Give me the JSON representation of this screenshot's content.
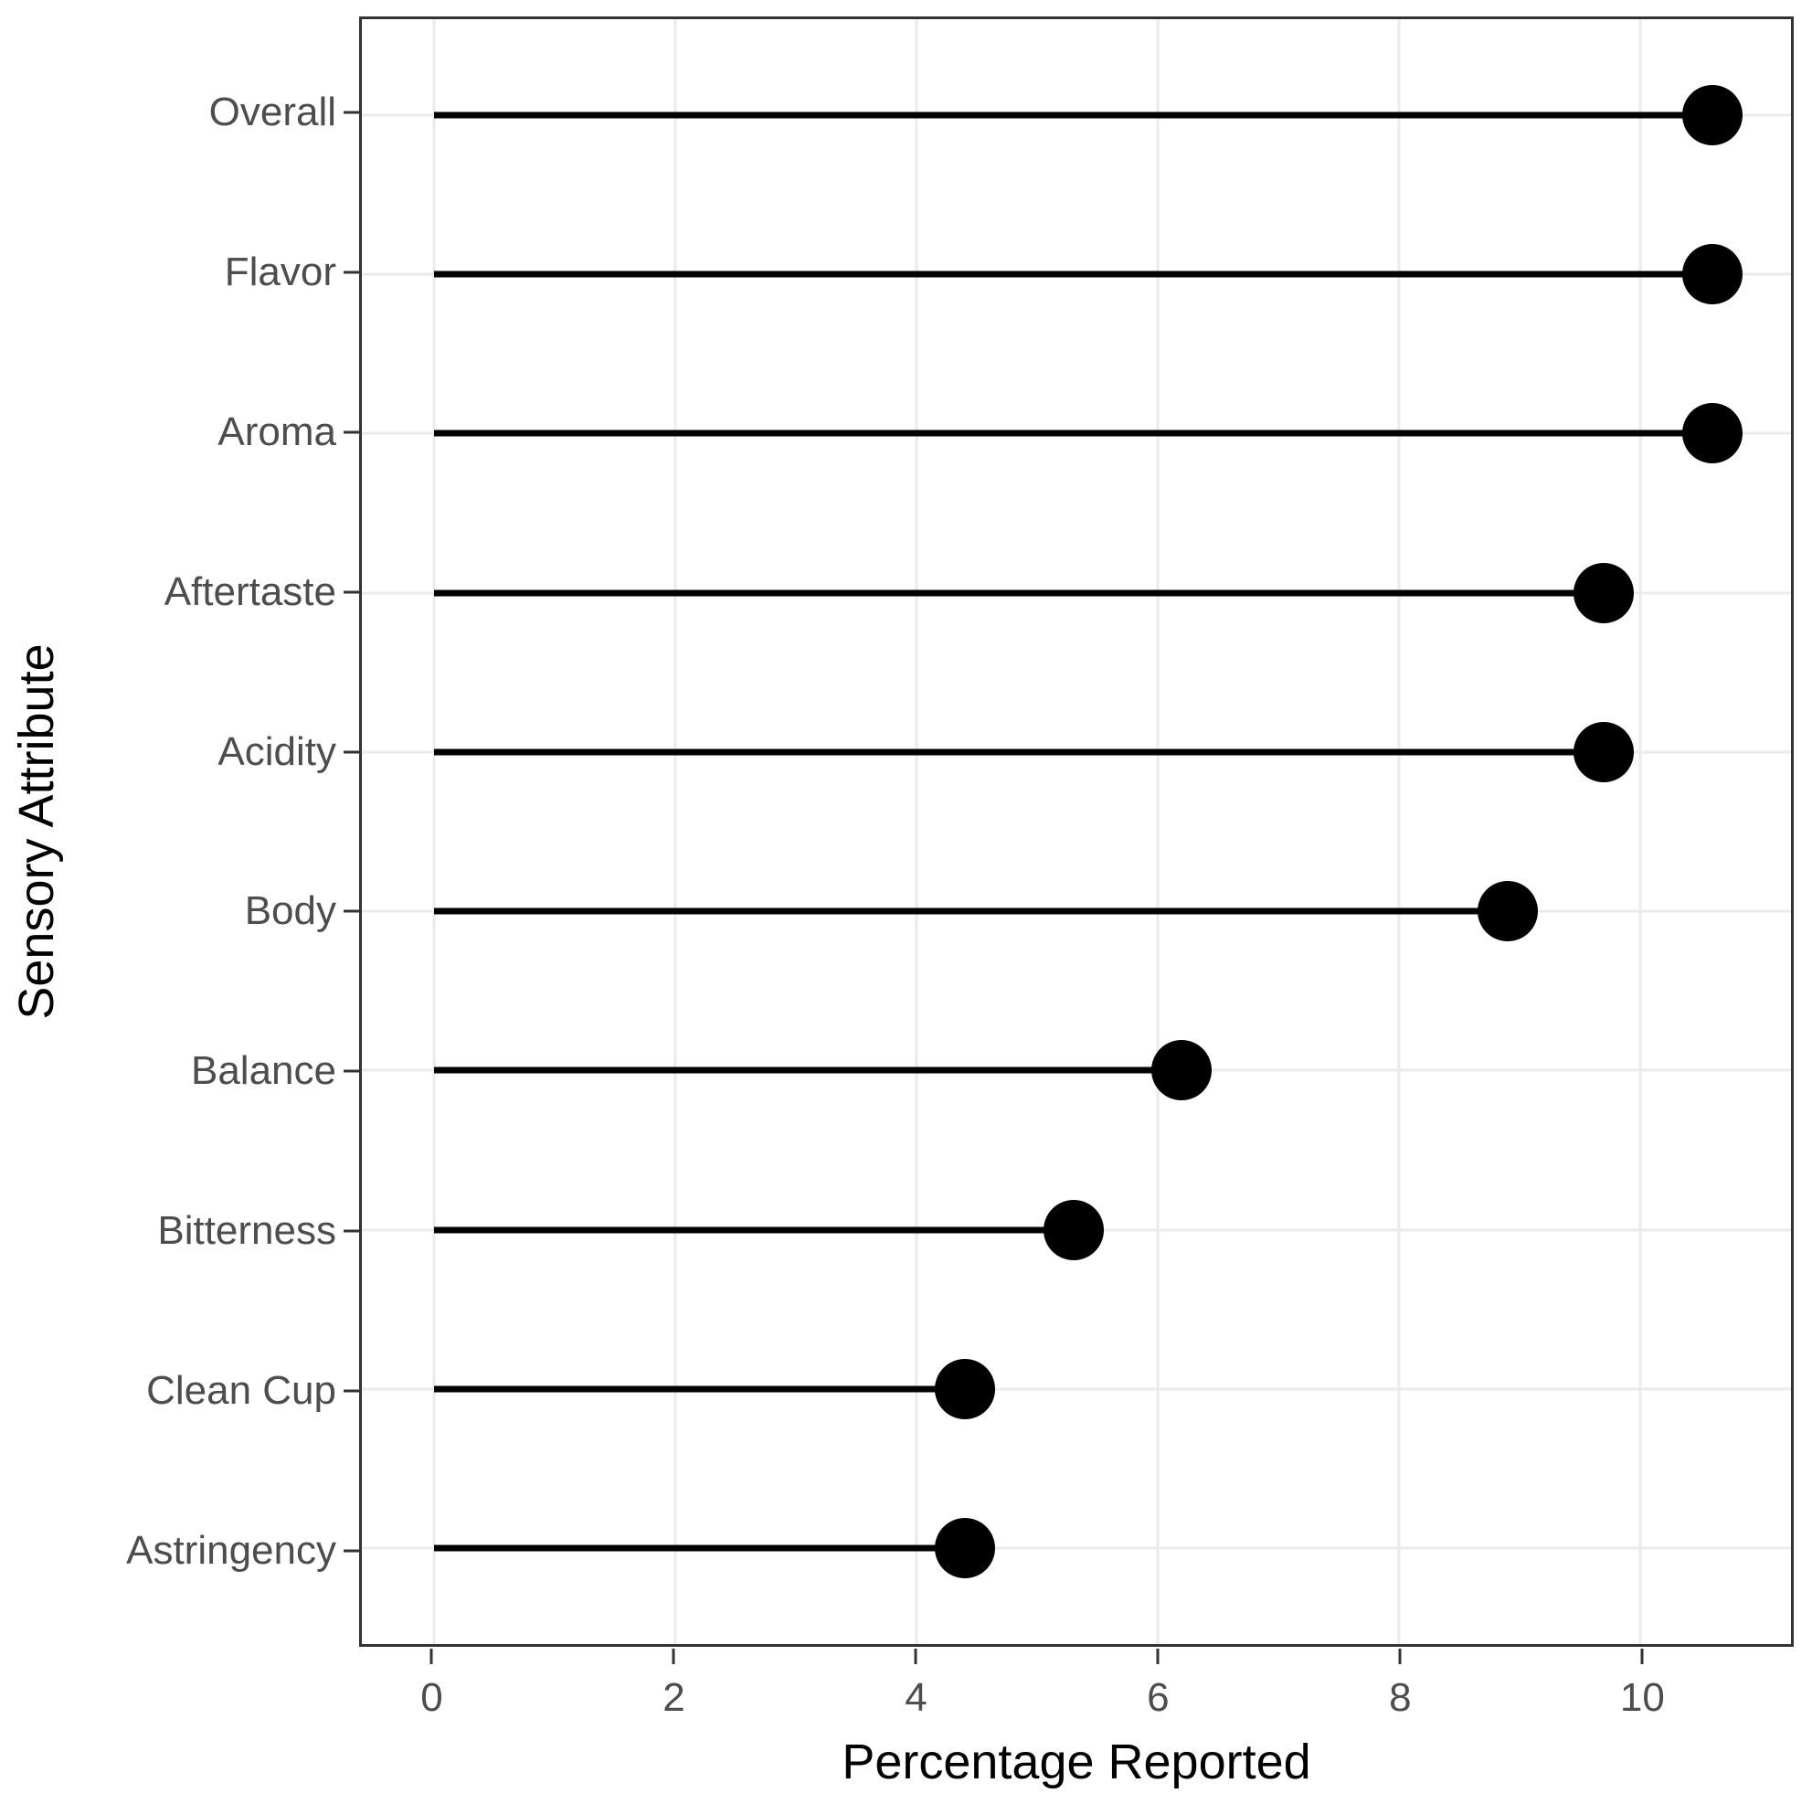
{
  "chart_data": {
    "type": "lollipop",
    "orientation": "horizontal",
    "title": "",
    "xlabel": "Percentage Reported",
    "ylabel": "Sensory Attribute",
    "categories": [
      "Overall",
      "Flavor",
      "Aroma",
      "Aftertaste",
      "Acidity",
      "Body",
      "Balance",
      "Bitterness",
      "Clean Cup",
      "Astringency"
    ],
    "values": [
      10.6,
      10.6,
      10.6,
      9.7,
      9.7,
      8.9,
      6.2,
      5.3,
      4.4,
      4.4
    ],
    "xlim": [
      -0.6,
      11.25
    ],
    "xticks": [
      0,
      2,
      4,
      6,
      8,
      10
    ],
    "xtick_labels": [
      "0",
      "2",
      "4",
      "6",
      "8",
      "10"
    ],
    "stem_start": 0,
    "grid": "major-vertical-and-category-rows",
    "legend": "none"
  },
  "style": {
    "dot_color": "#000000",
    "stem_color": "#000000",
    "grid_color": "#ebebeb",
    "panel_border_color": "#333333",
    "tick_mark_color": "#333333",
    "axis_text_color": "#4d4d4d",
    "axis_title_color": "#000000",
    "background_color": "#ffffff"
  }
}
